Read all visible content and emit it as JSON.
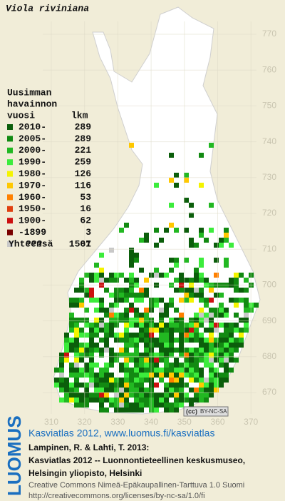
{
  "title": "Viola riviniana",
  "legend": {
    "header": [
      "Uusimman",
      "havainnon",
      "vuosi"
    ],
    "count_header": "lkm",
    "items": [
      {
        "label": "2010-",
        "count": 289,
        "color": "#0b5e0b"
      },
      {
        "label": "2005-",
        "count": 289,
        "color": "#128a12"
      },
      {
        "label": "2000-",
        "count": 221,
        "color": "#22b822"
      },
      {
        "label": "1990-",
        "count": 259,
        "color": "#3cec3c"
      },
      {
        "label": "1980-",
        "count": 126,
        "color": "#f4f400"
      },
      {
        "label": "1970-",
        "count": 116,
        "color": "#ffc800"
      },
      {
        "label": "1960-",
        "count": 53,
        "color": "#ff8000"
      },
      {
        "label": "1950-",
        "count": 16,
        "color": "#e04010"
      },
      {
        "label": "1900-",
        "count": 62,
        "color": "#cc1010"
      },
      {
        "label": "-1899",
        "count": 3,
        "color": "#7a0000"
      },
      {
        "label": "???",
        "count": 67,
        "color": "#c8c8c8"
      }
    ],
    "total_label": "Yhteensä",
    "total": 1501
  },
  "xticks": [
    310,
    320,
    330,
    340,
    350,
    360,
    370
  ],
  "yticks": [
    670,
    680,
    690,
    700,
    710,
    720,
    730,
    740,
    750,
    760,
    770
  ],
  "badge": {
    "cc": "(cc)",
    "license": "BY-NC-SA"
  },
  "footer": {
    "logo": "LUOMUS",
    "link": "Kasviatlas 2012, www.luomus.fi/kasviatlas",
    "citation": [
      "Lampinen, R. & Lahti, T. 2013:",
      "Kasviatlas 2012 -- Luonnontieteellinen keskusmuseo,",
      "Helsingin yliopisto, Helsinki"
    ],
    "license": [
      "Creative Commons Nimeä-Epäkaupallinen-Tarttuva 1.0 Suomi",
      "http://creativecommons.org/licenses/by-nc-sa/1.0/fi"
    ]
  }
}
